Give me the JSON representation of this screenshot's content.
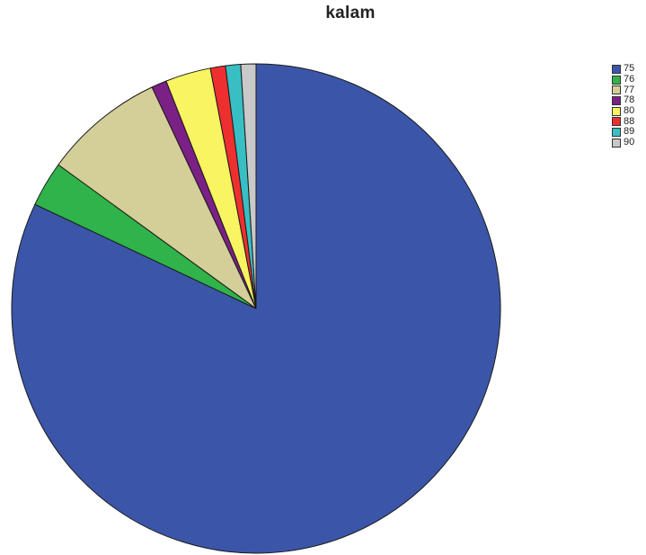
{
  "chart_data": {
    "type": "pie",
    "title": "kalam",
    "categories": [
      "75",
      "76",
      "77",
      "78",
      "80",
      "88",
      "89",
      "90"
    ],
    "values": [
      82,
      3,
      8,
      1,
      3,
      1,
      1,
      1
    ],
    "colors": [
      "#3b56a8",
      "#2fb34a",
      "#d4cf98",
      "#7b2085",
      "#f8f462",
      "#ee2f2f",
      "#38bfc4",
      "#c9c9c9"
    ],
    "legend_position": "top-right",
    "start_angle_deg": 0,
    "direction": "counterclockwise"
  }
}
